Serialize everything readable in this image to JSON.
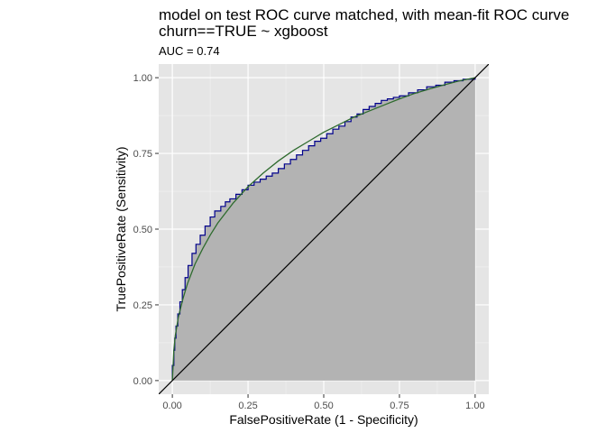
{
  "chart_data": {
    "type": "line",
    "title": "model on test ROC curve matched, with mean-fit ROC curve",
    "subtitle": "churn==TRUE ~ xgboost",
    "annotation": "AUC = 0.74",
    "xlabel": "FalsePositiveRate (1 - Specificity)",
    "ylabel": "TruePositiveRate (Sensitivity)",
    "xlim": [
      -0.045,
      1.045
    ],
    "ylim": [
      -0.045,
      1.045
    ],
    "x_ticks": [
      "0.00",
      "0.25",
      "0.50",
      "0.75",
      "1.00"
    ],
    "y_ticks": [
      "0.00",
      "0.25",
      "0.50",
      "0.75",
      "1.00"
    ],
    "grid": true,
    "background": "#e5e5e5",
    "series": [
      {
        "kind": "empirical-roc",
        "color": "#00008b",
        "fill": "#b3b3b3",
        "x": [
          0,
          0,
          0.005,
          0.008,
          0.012,
          0.018,
          0.025,
          0.033,
          0.042,
          0.052,
          0.065,
          0.078,
          0.092,
          0.108,
          0.125,
          0.14,
          0.16,
          0.175,
          0.19,
          0.21,
          0.23,
          0.25,
          0.27,
          0.29,
          0.31,
          0.33,
          0.35,
          0.37,
          0.39,
          0.41,
          0.43,
          0.45,
          0.47,
          0.49,
          0.51,
          0.53,
          0.55,
          0.57,
          0.59,
          0.61,
          0.63,
          0.65,
          0.67,
          0.69,
          0.71,
          0.73,
          0.75,
          0.78,
          0.81,
          0.84,
          0.87,
          0.9,
          0.93,
          0.96,
          1.0
        ],
        "y": [
          0,
          0.05,
          0.1,
          0.14,
          0.18,
          0.22,
          0.26,
          0.3,
          0.34,
          0.38,
          0.42,
          0.45,
          0.48,
          0.51,
          0.54,
          0.56,
          0.575,
          0.59,
          0.6,
          0.615,
          0.63,
          0.645,
          0.655,
          0.665,
          0.675,
          0.685,
          0.7,
          0.715,
          0.73,
          0.745,
          0.76,
          0.775,
          0.79,
          0.8,
          0.815,
          0.83,
          0.84,
          0.855,
          0.87,
          0.88,
          0.895,
          0.905,
          0.915,
          0.925,
          0.93,
          0.935,
          0.94,
          0.95,
          0.96,
          0.97,
          0.975,
          0.985,
          0.99,
          0.995,
          1.0
        ]
      },
      {
        "kind": "mean-fit-roc",
        "color": "#2e6b2e",
        "x": [
          0,
          0.005,
          0.01,
          0.02,
          0.035,
          0.05,
          0.075,
          0.1,
          0.125,
          0.15,
          0.2,
          0.25,
          0.3,
          0.35,
          0.4,
          0.45,
          0.5,
          0.55,
          0.6,
          0.65,
          0.7,
          0.75,
          0.8,
          0.85,
          0.9,
          0.95,
          1.0
        ],
        "y": [
          0,
          0.1,
          0.15,
          0.21,
          0.27,
          0.32,
          0.385,
          0.435,
          0.48,
          0.52,
          0.585,
          0.64,
          0.685,
          0.725,
          0.76,
          0.79,
          0.82,
          0.845,
          0.87,
          0.89,
          0.91,
          0.93,
          0.948,
          0.963,
          0.977,
          0.99,
          1.0
        ]
      },
      {
        "kind": "reference-diagonal",
        "color": "#000000",
        "x": [
          -0.045,
          1.045
        ],
        "y": [
          -0.045,
          1.045
        ]
      }
    ]
  }
}
